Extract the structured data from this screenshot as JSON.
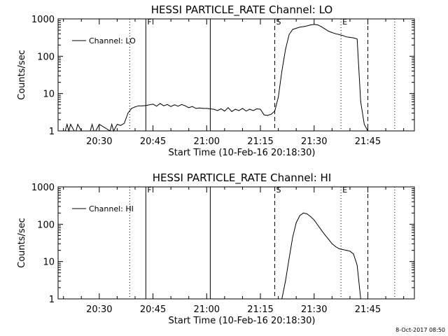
{
  "chart_data": [
    {
      "type": "line",
      "title": "HESSI PARTICLE_RATE Channel: LO",
      "xlabel": "Start Time (10-Feb-16 20:18:30)",
      "ylabel": "Counts/sec",
      "yscale": "log",
      "ylim": [
        1,
        1000
      ],
      "xlim": [
        "20:18:30",
        "21:58:00"
      ],
      "x_ticks": [
        "20:30",
        "20:45",
        "21:00",
        "21:15",
        "21:30",
        "21:45"
      ],
      "y_ticks": [
        "1",
        "10",
        "100",
        "1000"
      ],
      "legend": {
        "entries": [
          "Channel: LO"
        ],
        "placement": "top-left"
      },
      "grid": false,
      "markers": [
        {
          "time": "20:38:30",
          "style": "dotted",
          "label": ""
        },
        {
          "time": "20:43:00",
          "style": "solid",
          "label": "F"
        },
        {
          "time": "21:01:00",
          "style": "solid",
          "label": ""
        },
        {
          "time": "21:19:00",
          "style": "dashed",
          "label": "S"
        },
        {
          "time": "21:37:30",
          "style": "dotted",
          "label": "E"
        },
        {
          "time": "21:45:00",
          "style": "dashed",
          "label": ""
        },
        {
          "time": "21:52:30",
          "style": "dotted",
          "label": ""
        }
      ],
      "series": [
        {
          "name": "Channel: LO",
          "x": [
            "20:19:30",
            "20:20:30",
            "20:21:00",
            "20:21:30",
            "20:22:00",
            "20:23:00",
            "20:23:30",
            "20:24:00",
            "20:25:00",
            "20:27:30",
            "20:28:00",
            "20:28:30",
            "20:29:00",
            "20:30:00",
            "20:33:00",
            "20:33:30",
            "20:34:00",
            "20:35:00",
            "20:36:00",
            "20:37:00",
            "20:38:00",
            "20:39:00",
            "20:40:00",
            "20:41:00",
            "20:42:00",
            "20:43:00",
            "20:45:00",
            "20:46:00",
            "20:47:00",
            "20:48:00",
            "20:49:00",
            "20:50:00",
            "20:51:00",
            "20:52:00",
            "20:53:00",
            "20:54:00",
            "20:55:00",
            "20:56:00",
            "20:57:00",
            "20:58:00",
            "20:59:00",
            "21:00:00",
            "21:01:00",
            "21:02:00",
            "21:03:00",
            "21:04:00",
            "21:05:00",
            "21:06:00",
            "21:07:00",
            "21:08:00",
            "21:09:00",
            "21:10:00",
            "21:11:00",
            "21:12:00",
            "21:13:00",
            "21:14:00",
            "21:15:00",
            "21:16:00",
            "21:17:00",
            "21:18:00",
            "21:19:00",
            "21:20:00",
            "21:21:00",
            "21:22:00",
            "21:23:00",
            "21:24:00",
            "21:25:00",
            "21:26:00",
            "21:27:00",
            "21:28:00",
            "21:29:00",
            "21:30:00",
            "21:31:00",
            "21:32:00",
            "21:33:00",
            "21:34:00",
            "21:35:00",
            "21:36:00",
            "21:37:00",
            "21:38:00",
            "21:39:00",
            "21:40:00",
            "21:41:00",
            "21:42:00",
            "21:43:00",
            "21:44:00",
            "21:45:00",
            "21:58:00"
          ],
          "y": [
            1,
            1,
            1.5,
            1,
            1.5,
            1,
            1,
            1.5,
            1,
            1,
            1.5,
            1,
            1,
            1.5,
            1,
            1.5,
            1,
            1.5,
            1.4,
            1.6,
            3,
            4,
            4.4,
            4.7,
            4.7,
            4.8,
            5.2,
            4.6,
            5.4,
            4.7,
            5.1,
            4.5,
            5,
            4.6,
            5.1,
            4.7,
            4.2,
            4.5,
            4,
            4.1,
            4,
            4,
            3.9,
            3.8,
            3.5,
            3.9,
            3.4,
            4.2,
            3.3,
            3.8,
            3.5,
            4,
            3.4,
            3.8,
            3.5,
            3.9,
            3.8,
            2.7,
            2.6,
            2.8,
            3.4,
            8,
            40,
            150,
            380,
            520,
            560,
            600,
            620,
            650,
            690,
            710,
            690,
            620,
            540,
            470,
            430,
            400,
            380,
            360,
            330,
            320,
            310,
            290,
            6,
            1.5,
            1,
            1
          ]
        }
      ]
    },
    {
      "type": "line",
      "title": "HESSI PARTICLE_RATE Channel: HI",
      "xlabel": "Start Time (10-Feb-16 20:18:30)",
      "ylabel": "Counts/sec",
      "yscale": "log",
      "ylim": [
        1,
        1000
      ],
      "xlim": [
        "20:18:30",
        "21:58:00"
      ],
      "x_ticks": [
        "20:30",
        "20:45",
        "21:00",
        "21:15",
        "21:30",
        "21:45"
      ],
      "y_ticks": [
        "1",
        "10",
        "100",
        "1000"
      ],
      "legend": {
        "entries": [
          "Channel: HI"
        ],
        "placement": "top-left"
      },
      "grid": false,
      "markers": [
        {
          "time": "20:38:30",
          "style": "dotted",
          "label": ""
        },
        {
          "time": "20:43:00",
          "style": "solid",
          "label": "F"
        },
        {
          "time": "21:01:00",
          "style": "solid",
          "label": ""
        },
        {
          "time": "21:19:00",
          "style": "dashed",
          "label": "S"
        },
        {
          "time": "21:37:30",
          "style": "dotted",
          "label": "E"
        },
        {
          "time": "21:45:00",
          "style": "dashed",
          "label": ""
        },
        {
          "time": "21:52:30",
          "style": "dotted",
          "label": ""
        }
      ],
      "series": [
        {
          "name": "Channel: HI",
          "x": [
            "21:21:00",
            "21:22:00",
            "21:23:00",
            "21:24:00",
            "21:25:00",
            "21:26:00",
            "21:27:00",
            "21:28:00",
            "21:29:00",
            "21:30:00",
            "21:31:00",
            "21:32:00",
            "21:33:00",
            "21:34:00",
            "21:35:00",
            "21:36:00",
            "21:37:00",
            "21:38:00",
            "21:39:00",
            "21:40:00",
            "21:41:00",
            "21:42:00",
            "21:43:00"
          ],
          "y": [
            1,
            3,
            12,
            45,
            110,
            170,
            200,
            190,
            160,
            130,
            95,
            70,
            52,
            40,
            30,
            25,
            22,
            21,
            20,
            19,
            16,
            8,
            1
          ]
        }
      ]
    }
  ],
  "footer": {
    "timestamp": "8-Oct-2017 08:50"
  }
}
